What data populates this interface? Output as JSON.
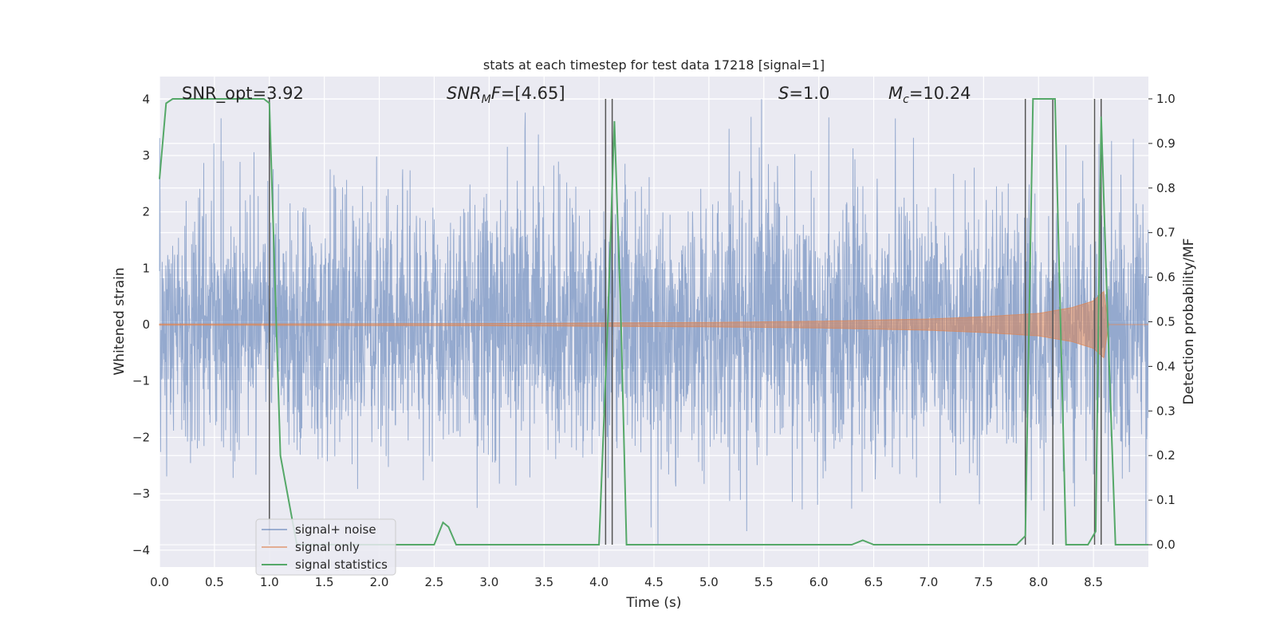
{
  "chart_data": {
    "type": "line",
    "title": "stats at each timestep for test data 17218 [signal=1]",
    "xlabel": "Time (s)",
    "ylabel_left": "Whitened strain",
    "ylabel_right": "Detection probability/MF",
    "xlim": [
      0.0,
      9.0
    ],
    "ylim_left": [
      -4.3,
      4.4
    ],
    "ylim_right": [
      -0.05,
      1.05
    ],
    "x_ticks": [
      "0.0",
      "0.5",
      "1.0",
      "1.5",
      "2.0",
      "2.5",
      "3.0",
      "3.5",
      "4.0",
      "4.5",
      "5.0",
      "5.5",
      "6.0",
      "6.5",
      "7.0",
      "7.5",
      "8.0",
      "8.5"
    ],
    "y_ticks_left": [
      "4",
      "3",
      "2",
      "1",
      "0",
      "−1",
      "−2",
      "−3",
      "−4"
    ],
    "y_ticks_right": [
      "1.0",
      "0.9",
      "0.8",
      "0.7",
      "0.6",
      "0.5",
      "0.4",
      "0.3",
      "0.2",
      "0.1",
      "0.0"
    ],
    "grid": true,
    "legend_position": "lower-left",
    "annotations": {
      "snr_opt": "SNR_opt=3.92",
      "snr_mf": "SNR_MF=[4.65]",
      "s": "S=1.0",
      "mc": "M_c=10.24"
    },
    "series": [
      {
        "name": "signal+ noise",
        "color": "#4c72b0",
        "description_range": [
          -3.9,
          4.0
        ]
      },
      {
        "name": "signal only",
        "color": "#dd8452",
        "envelope": [
          [
            0.0,
            0.01
          ],
          [
            3.0,
            0.02
          ],
          [
            5.0,
            0.04
          ],
          [
            6.0,
            0.06
          ],
          [
            7.0,
            0.1
          ],
          [
            7.5,
            0.14
          ],
          [
            8.0,
            0.2
          ],
          [
            8.3,
            0.3
          ],
          [
            8.5,
            0.42
          ],
          [
            8.6,
            0.6
          ],
          [
            8.63,
            0.0
          ],
          [
            9.0,
            0.0
          ]
        ]
      },
      {
        "name": "signal statistics",
        "color": "#55a868",
        "x": [
          0.0,
          0.06,
          0.12,
          0.25,
          0.5,
          0.75,
          0.95,
          1.0,
          1.1,
          1.25,
          1.4,
          1.8,
          2.2,
          2.45,
          2.5,
          2.58,
          2.63,
          2.7,
          3.0,
          3.5,
          3.9,
          4.0,
          4.08,
          4.14,
          4.2,
          4.25,
          4.3,
          5.0,
          6.0,
          6.3,
          6.4,
          6.5,
          7.5,
          7.8,
          7.88,
          7.95,
          8.05,
          8.15,
          8.25,
          8.35,
          8.45,
          8.52,
          8.57,
          8.63,
          8.7,
          9.0
        ],
        "y": [
          0.82,
          0.99,
          1.0,
          1.0,
          1.0,
          1.0,
          1.0,
          0.99,
          0.2,
          0.0,
          0.0,
          0.0,
          0.0,
          0.0,
          0.0,
          0.05,
          0.04,
          0.0,
          0.0,
          0.0,
          0.0,
          0.0,
          0.5,
          0.95,
          0.5,
          0.0,
          0.0,
          0.0,
          0.0,
          0.0,
          0.01,
          0.0,
          0.0,
          0.0,
          0.02,
          1.0,
          1.0,
          1.0,
          0.0,
          0.0,
          0.0,
          0.03,
          0.96,
          0.5,
          0.0,
          0.0
        ]
      }
    ],
    "vertical_markers": [
      1.0,
      4.06,
      4.12,
      7.88,
      8.13,
      8.51,
      8.57
    ]
  }
}
